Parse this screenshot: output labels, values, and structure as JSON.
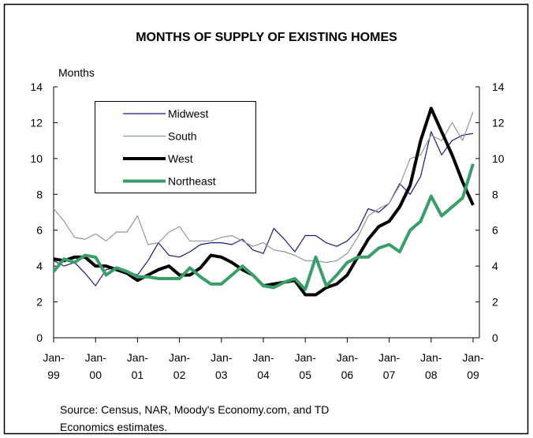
{
  "chart_data": {
    "type": "line",
    "title": "MONTHS OF SUPPLY OF EXISTING HOMES",
    "y_label": "Months",
    "source": [
      "Source: Census, NAR, Moody's Economy.com, and TD",
      "Economics estimates."
    ],
    "categories": [
      "Jan-99",
      null,
      null,
      null,
      "Jan-00",
      null,
      null,
      null,
      "Jan-01",
      null,
      null,
      null,
      "Jan-02",
      null,
      null,
      null,
      "Jan-03",
      null,
      null,
      null,
      "Jan-04",
      null,
      null,
      null,
      "Jan-05",
      null,
      null,
      null,
      "Jan-06",
      null,
      null,
      null,
      "Jan-07",
      null,
      null,
      null,
      "Jan-08",
      null,
      null,
      null,
      "Jan-09"
    ],
    "series": [
      {
        "name": "Midwest",
        "color": "#1a1a8c",
        "width": 1.2,
        "values": [
          4.3,
          4.0,
          4.2,
          3.6,
          2.9,
          3.8,
          3.9,
          3.7,
          3.5,
          4.3,
          5.3,
          4.6,
          4.5,
          4.8,
          5.2,
          5.3,
          5.3,
          5.2,
          5.5,
          4.9,
          4.7,
          6.1,
          5.5,
          4.8,
          5.7,
          5.7,
          5.3,
          5.1,
          5.4,
          6.0,
          7.2,
          7.0,
          7.5,
          8.6,
          8.0,
          9.0,
          11.5,
          10.2,
          11.0,
          11.3,
          11.4
        ]
      },
      {
        "name": "South",
        "color": "#8c9a96",
        "width": 1.2,
        "values": [
          7.2,
          6.5,
          5.6,
          5.5,
          5.8,
          5.4,
          5.9,
          5.9,
          6.8,
          5.2,
          5.3,
          5.9,
          6.2,
          5.4,
          5.4,
          5.4,
          5.6,
          5.7,
          5.4,
          5.1,
          5.3,
          4.9,
          4.8,
          4.6,
          4.3,
          4.3,
          4.2,
          4.3,
          4.7,
          5.6,
          6.8,
          7.2,
          7.5,
          8.5,
          10.0,
          10.2,
          11.3,
          11.0,
          12.0,
          11.0,
          12.6
        ]
      },
      {
        "name": "West",
        "color": "#000000",
        "width": 4,
        "values": [
          4.4,
          4.3,
          4.5,
          4.5,
          4.0,
          4.0,
          3.8,
          3.6,
          3.2,
          3.5,
          3.8,
          4.0,
          3.5,
          3.5,
          3.9,
          4.6,
          4.5,
          4.2,
          3.8,
          3.5,
          2.9,
          3.0,
          3.1,
          3.2,
          2.4,
          2.4,
          2.8,
          3.0,
          3.5,
          4.5,
          5.5,
          6.2,
          6.5,
          7.3,
          8.5,
          11.0,
          12.8,
          11.5,
          10.2,
          8.7,
          7.4
        ]
      },
      {
        "name": "Northeast",
        "color": "#3a9e68",
        "width": 4,
        "values": [
          3.7,
          4.4,
          4.2,
          4.6,
          4.5,
          3.5,
          3.9,
          3.7,
          3.4,
          3.4,
          3.3,
          3.3,
          3.3,
          3.9,
          3.4,
          3.0,
          3.0,
          3.5,
          4.0,
          3.5,
          2.9,
          2.8,
          3.1,
          3.3,
          2.7,
          4.5,
          2.9,
          3.5,
          4.2,
          4.5,
          4.5,
          5.0,
          5.2,
          4.8,
          6.0,
          6.5,
          7.9,
          6.8,
          7.3,
          7.8,
          9.7
        ]
      }
    ],
    "ylim": [
      0,
      14
    ],
    "yticks": [
      0,
      2,
      4,
      6,
      8,
      10,
      12,
      14
    ],
    "y2lim": [
      0,
      14
    ],
    "y2ticks": [
      0,
      2,
      4,
      6,
      8,
      10,
      12,
      14
    ]
  }
}
